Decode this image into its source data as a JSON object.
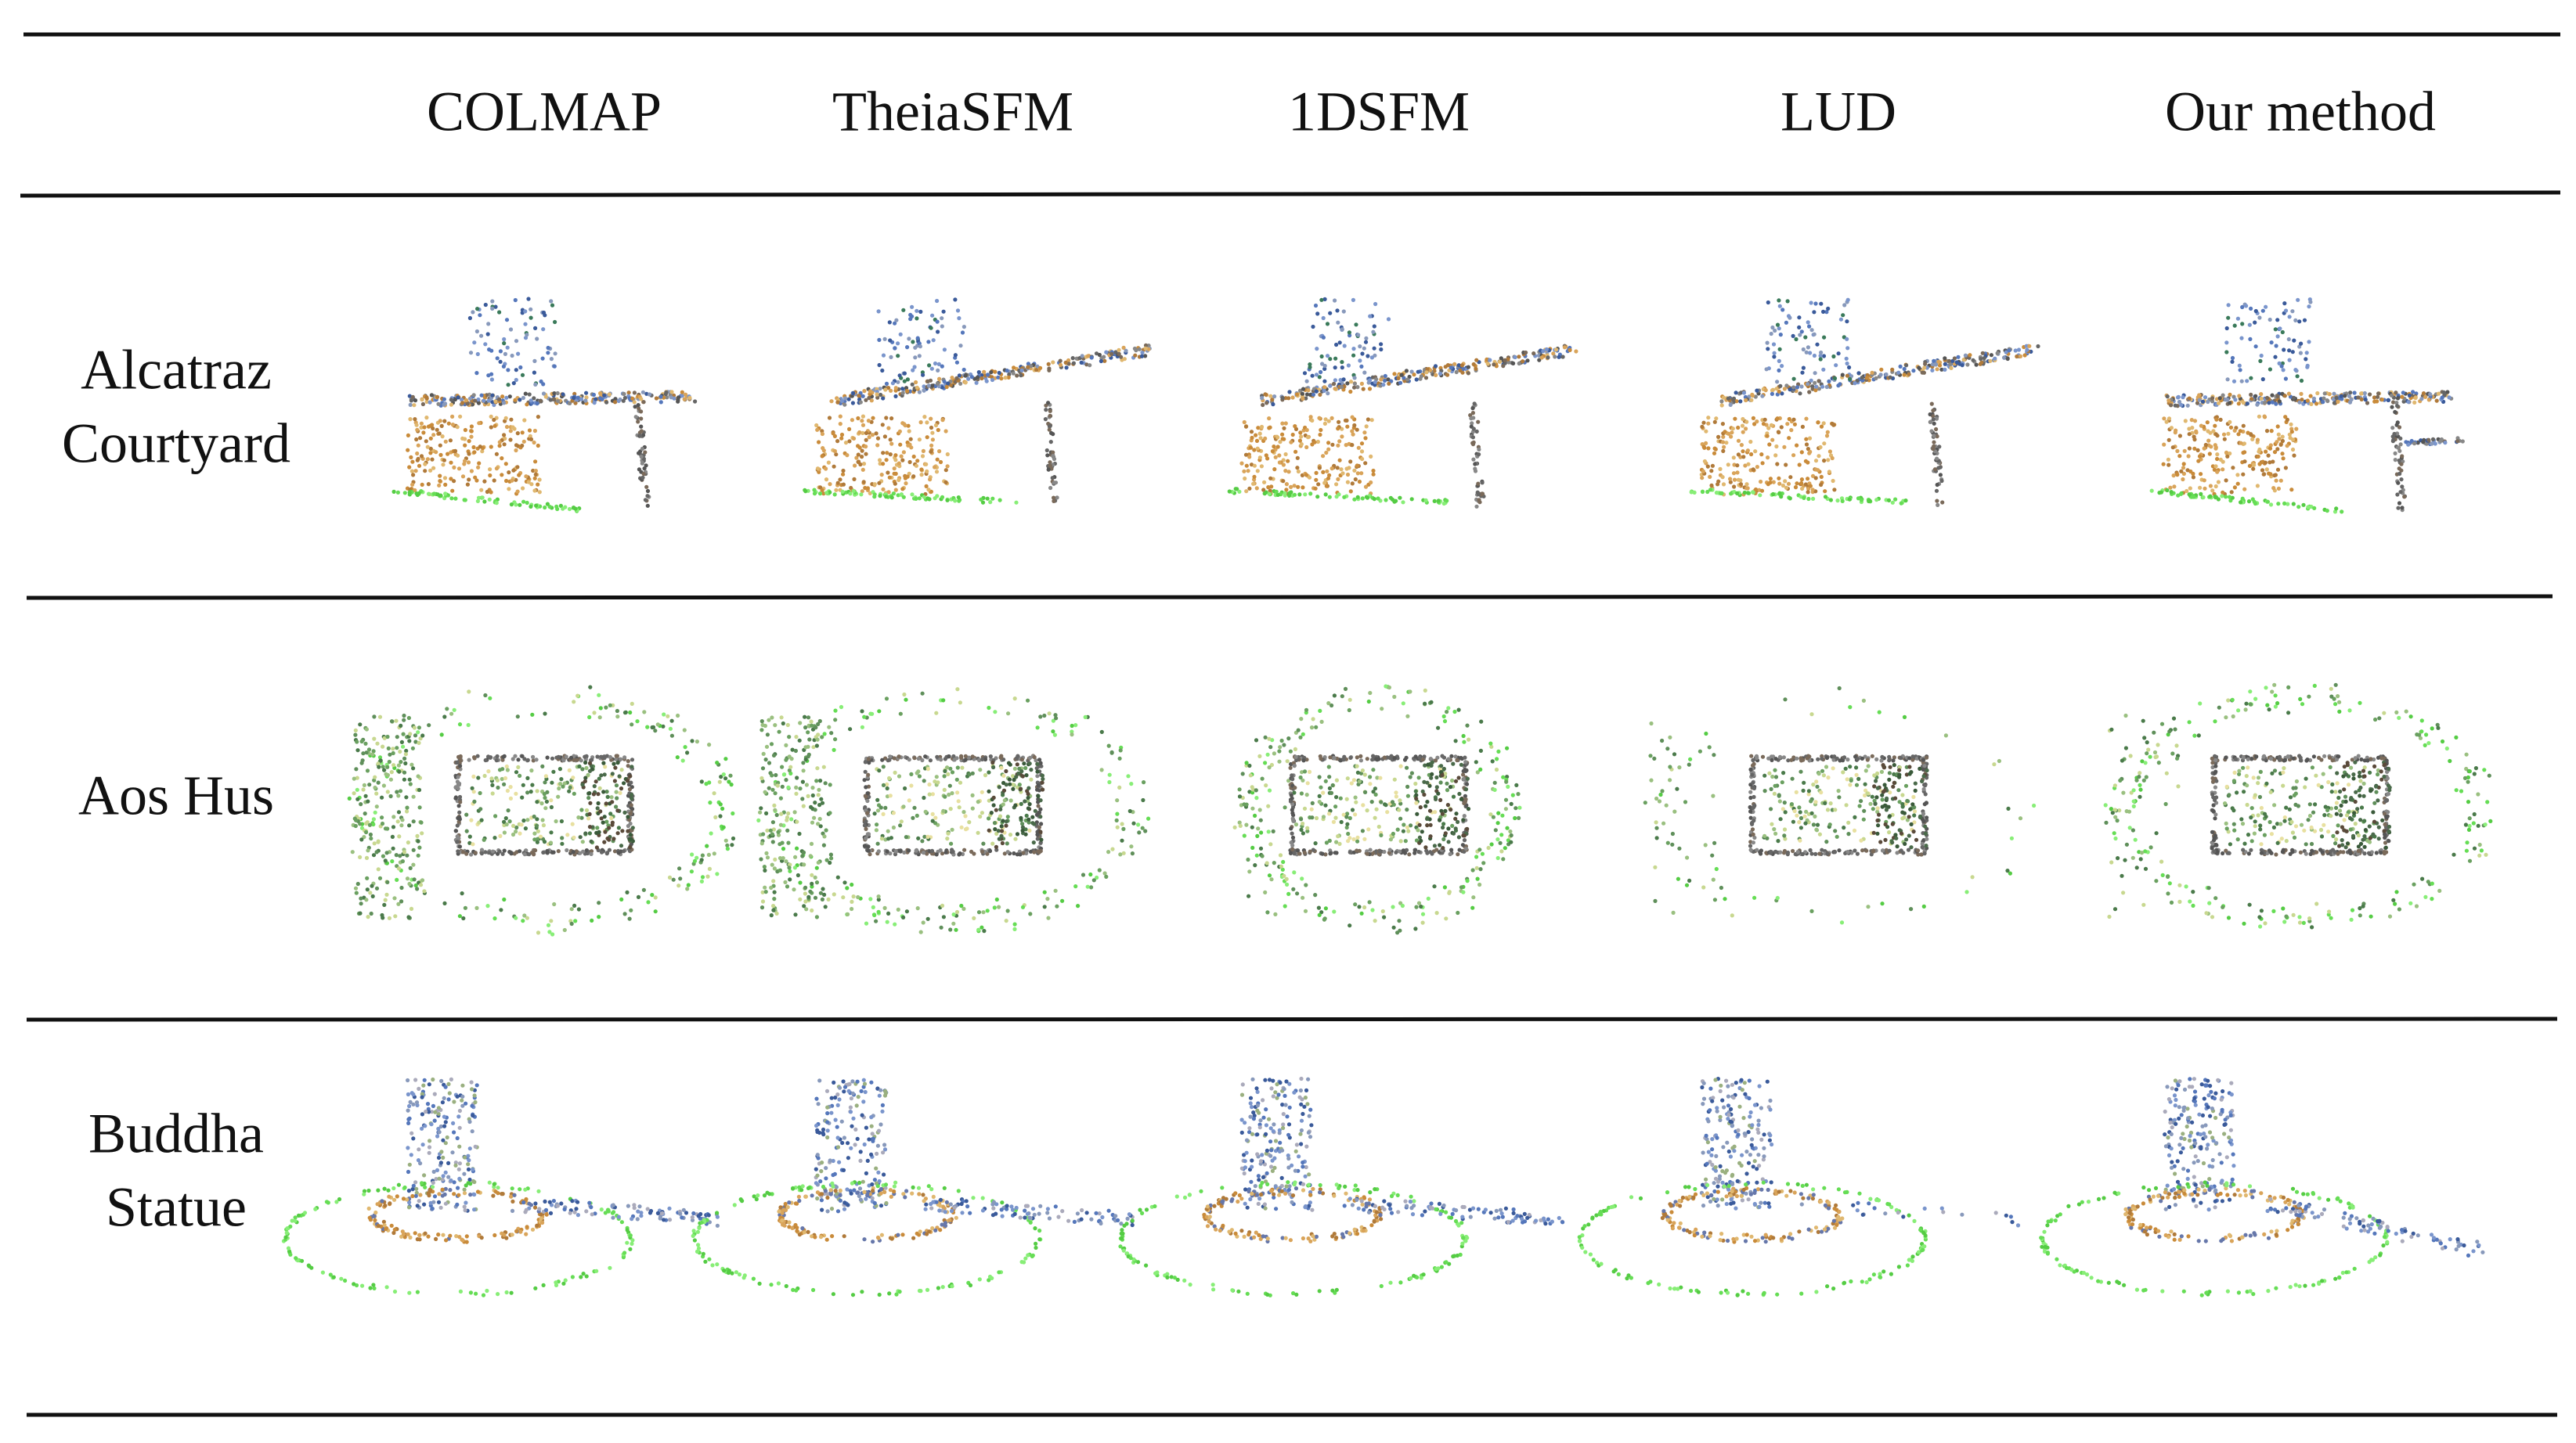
{
  "table": {
    "columns": [
      "COLMAP",
      "TheiaSFM",
      "1DSFM",
      "LUD",
      "Our method"
    ],
    "rows": [
      [
        "Alcatraz",
        "Courtyard"
      ],
      [
        "Aos Hus"
      ],
      [
        "Buddha",
        "Statue"
      ]
    ]
  }
}
